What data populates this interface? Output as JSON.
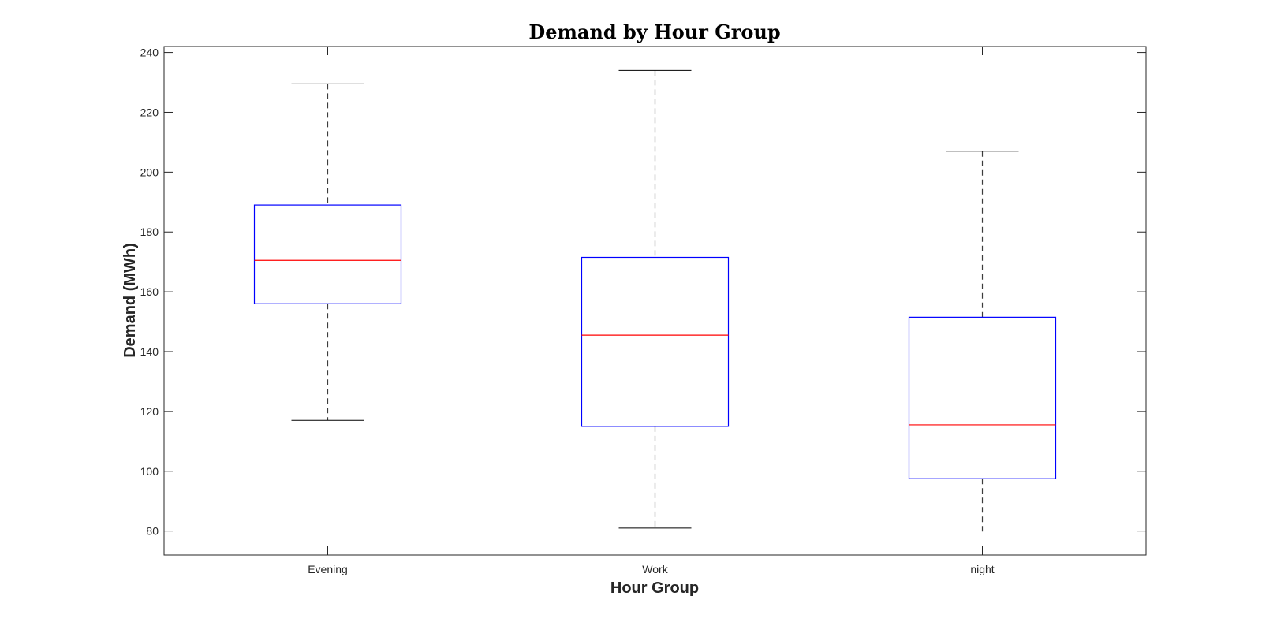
{
  "chart_data": {
    "type": "box",
    "title": "Demand by Hour Group",
    "xlabel": "Hour Group",
    "ylabel": "Demand (MWh)",
    "ylim": [
      72,
      242
    ],
    "yticks": [
      80,
      100,
      120,
      140,
      160,
      180,
      200,
      220,
      240
    ],
    "categories": [
      "Evening",
      "Work",
      "night"
    ],
    "boxes": [
      {
        "category": "Evening",
        "whisker_low": 117,
        "q1": 156,
        "median": 170.5,
        "q3": 189,
        "whisker_high": 229.5
      },
      {
        "category": "Work",
        "whisker_low": 81,
        "q1": 115,
        "median": 145.5,
        "q3": 171.5,
        "whisker_high": 234
      },
      {
        "category": "night",
        "whisker_low": 79,
        "q1": 97.5,
        "median": 115.5,
        "q3": 151.5,
        "whisker_high": 207
      }
    ],
    "grid": false,
    "colors": {
      "box": "#0000ff",
      "median": "#ff0000",
      "whisker": "#000000",
      "axis": "#262626"
    }
  }
}
